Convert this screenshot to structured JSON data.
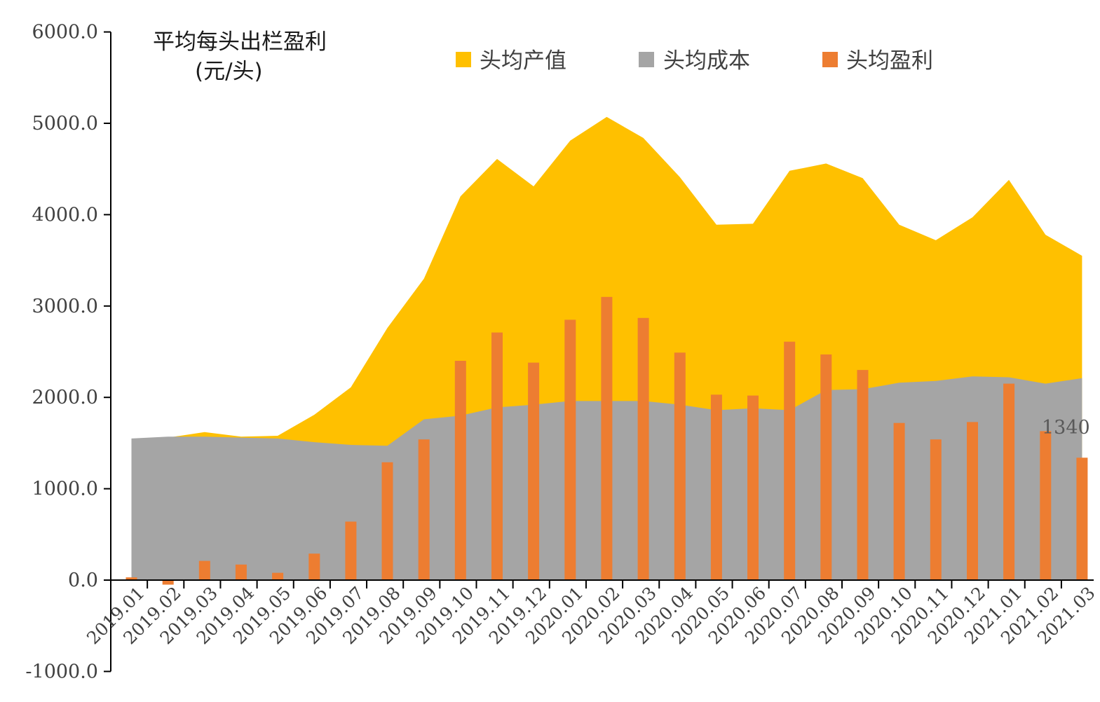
{
  "chart_data": {
    "type": "area+bar",
    "title": "平均每头出栏盈利",
    "unit_label": "(元/头)",
    "categories": [
      "2019.01",
      "2019.02",
      "2019.03",
      "2019.04",
      "2019.05",
      "2019.06",
      "2019.07",
      "2019.08",
      "2019.09",
      "2019.10",
      "2019.11",
      "2019.12",
      "2020.01",
      "2020.02",
      "2020.03",
      "2020.04",
      "2020.05",
      "2020.06",
      "2020.07",
      "2020.08",
      "2020.09",
      "2020.10",
      "2020.11",
      "2020.12",
      "2021.01",
      "2021.02",
      "2021.03"
    ],
    "series": [
      {
        "name": "头均产值",
        "kind": "area",
        "color": "#FFC000",
        "values": [
          1530,
          1560,
          1620,
          1570,
          1580,
          1810,
          2110,
          2760,
          3300,
          4200,
          4610,
          4310,
          4810,
          5070,
          4840,
          4410,
          3890,
          3900,
          4480,
          4560,
          4400,
          3890,
          3720,
          3970,
          4380,
          3780,
          3550
        ]
      },
      {
        "name": "头均成本",
        "kind": "area",
        "color": "#A5A5A5",
        "values": [
          1550,
          1570,
          1570,
          1560,
          1550,
          1510,
          1480,
          1470,
          1760,
          1800,
          1890,
          1920,
          1960,
          1960,
          1960,
          1920,
          1860,
          1880,
          1860,
          2080,
          2090,
          2160,
          2180,
          2230,
          2220,
          2150,
          2210
        ]
      },
      {
        "name": "头均盈利",
        "kind": "bar",
        "color": "#ED7D31",
        "values": [
          30,
          -50,
          210,
          170,
          80,
          290,
          640,
          1290,
          1540,
          2400,
          2710,
          2380,
          2850,
          3100,
          2870,
          2490,
          2030,
          2020,
          2610,
          2470,
          2300,
          1720,
          1540,
          1730,
          2150,
          1630,
          1340
        ]
      }
    ],
    "ylim": [
      -1000,
      6000
    ],
    "y_ticks": [
      "-1000.0",
      "0.0",
      "1000.0",
      "2000.0",
      "3000.0",
      "4000.0",
      "5000.0",
      "6000.0"
    ],
    "data_label": "1340",
    "legend_position": "top"
  }
}
